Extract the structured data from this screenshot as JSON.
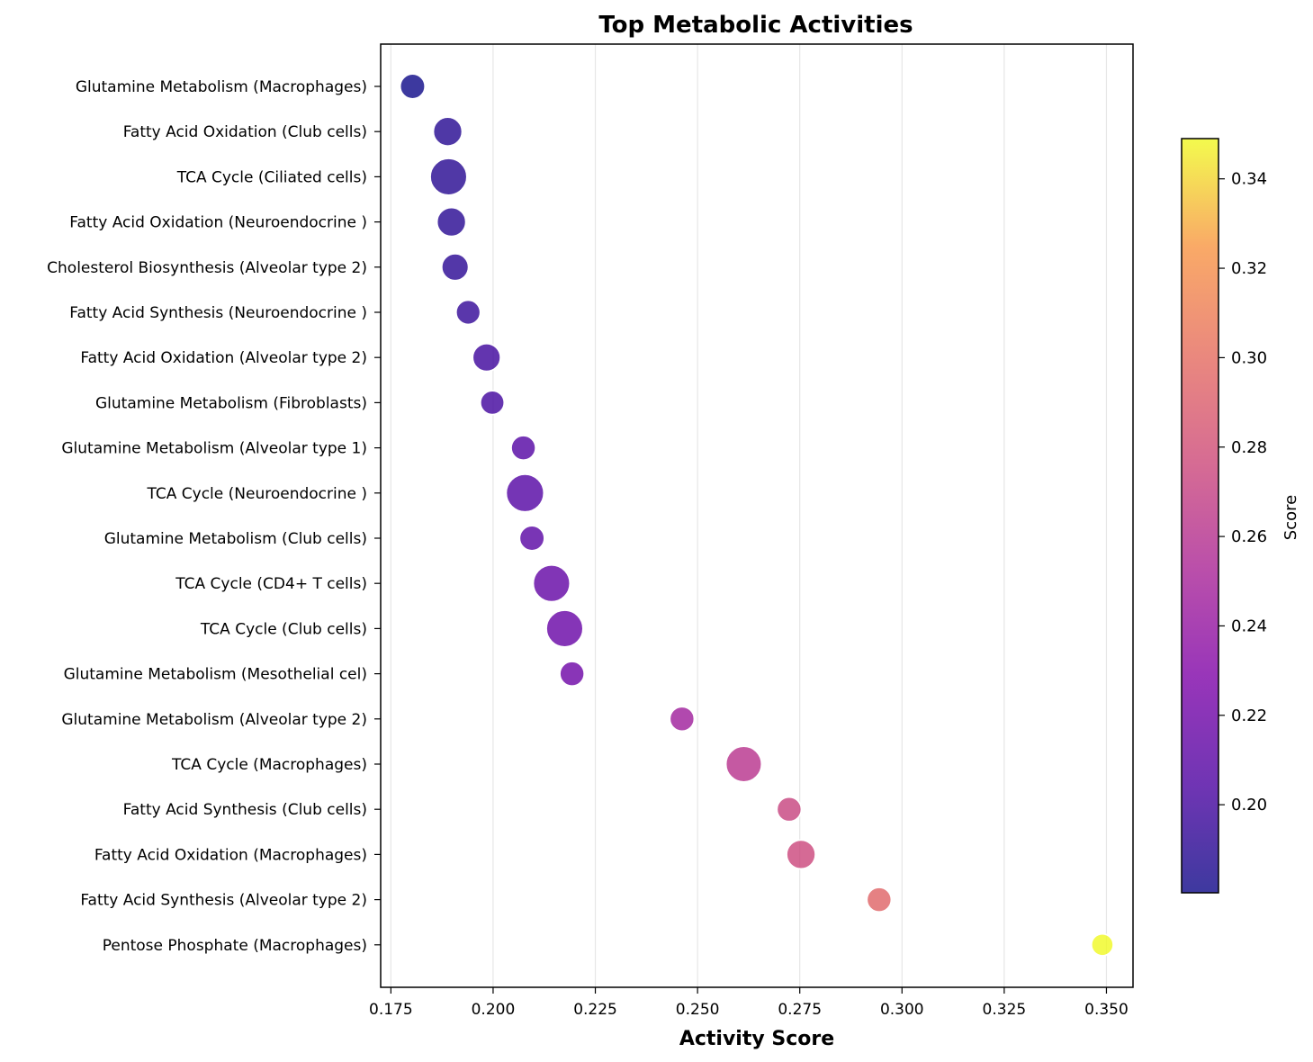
{
  "chart_data": {
    "type": "scatter",
    "title": "Top Metabolic Activities",
    "xlabel": "Activity Score",
    "ylabel": "",
    "xlim": [
      0.1725,
      0.3565
    ],
    "xticks": [
      "0.175",
      "0.200",
      "0.225",
      "0.250",
      "0.275",
      "0.300",
      "0.325",
      "0.350"
    ],
    "grid": "x",
    "colormap": "plasma",
    "colorbar": {
      "label": "Score",
      "range": [
        0.1803,
        0.349
      ],
      "ticks": [
        "0.20",
        "0.22",
        "0.24",
        "0.26",
        "0.28",
        "0.30",
        "0.32",
        "0.34"
      ]
    },
    "points": [
      {
        "label": "Glutamine Metabolism (Macrophages)",
        "x": 0.1803,
        "size": 0.35
      },
      {
        "label": "Fatty Acid Oxidation (Club cells)",
        "x": 0.1889,
        "size": 0.55
      },
      {
        "label": "TCA Cycle (Ciliated cells)",
        "x": 0.1891,
        "size": 0.95
      },
      {
        "label": "Fatty Acid Oxidation (Neuroendocrine )",
        "x": 0.1898,
        "size": 0.55
      },
      {
        "label": "Cholesterol Biosynthesis (Alveolar type 2)",
        "x": 0.1907,
        "size": 0.45
      },
      {
        "label": "Fatty Acid Synthesis (Neuroendocrine )",
        "x": 0.1939,
        "size": 0.32
      },
      {
        "label": "Fatty Acid Oxidation (Alveolar type 2)",
        "x": 0.1984,
        "size": 0.5
      },
      {
        "label": "Glutamine Metabolism (Fibroblasts)",
        "x": 0.1998,
        "size": 0.3
      },
      {
        "label": "Glutamine Metabolism (Alveolar type 1)",
        "x": 0.2074,
        "size": 0.33
      },
      {
        "label": "TCA Cycle (Neuroendocrine )",
        "x": 0.2078,
        "size": 1.0
      },
      {
        "label": "Glutamine Metabolism (Club cells)",
        "x": 0.2095,
        "size": 0.35
      },
      {
        "label": "TCA Cycle (CD4+ T cells)",
        "x": 0.2143,
        "size": 0.95
      },
      {
        "label": "TCA Cycle (Club cells)",
        "x": 0.2175,
        "size": 0.95
      },
      {
        "label": "Glutamine Metabolism (Mesothelial cel)",
        "x": 0.2193,
        "size": 0.33
      },
      {
        "label": "Glutamine Metabolism (Alveolar type 2)",
        "x": 0.2462,
        "size": 0.33
      },
      {
        "label": "TCA Cycle (Macrophages)",
        "x": 0.2613,
        "size": 0.9
      },
      {
        "label": "Fatty Acid Synthesis (Club cells)",
        "x": 0.2724,
        "size": 0.33
      },
      {
        "label": "Fatty Acid Oxidation (Macrophages)",
        "x": 0.2753,
        "size": 0.55
      },
      {
        "label": "Fatty Acid Synthesis (Alveolar type 2)",
        "x": 0.2944,
        "size": 0.33
      },
      {
        "label": "Pentose Phosphate (Macrophages)",
        "x": 0.349,
        "size": 0.2
      }
    ]
  }
}
